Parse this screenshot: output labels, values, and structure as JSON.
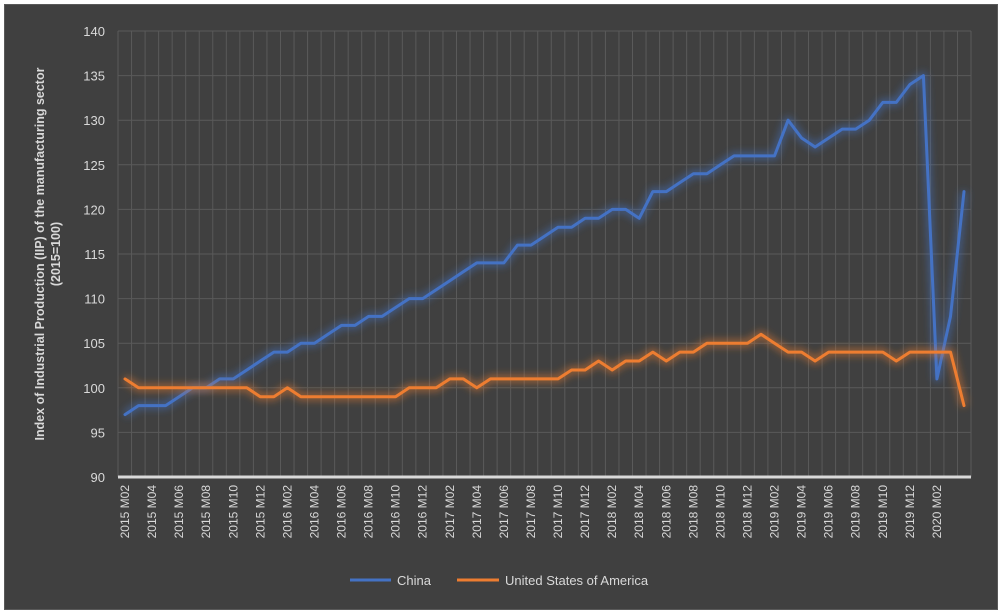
{
  "chart_data": {
    "type": "line",
    "ylabel": "Index of Industrial Production (IIP) of the manufacturing sector",
    "ylabel_line2": "(2015=100)",
    "ylim": [
      90,
      140
    ],
    "yticks": [
      90,
      95,
      100,
      105,
      110,
      115,
      120,
      125,
      130,
      135,
      140
    ],
    "grid": true,
    "legend_position": "bottom",
    "x": [
      "2015 M02",
      "2015 M03",
      "2015 M04",
      "2015 M05",
      "2015 M06",
      "2015 M07",
      "2015 M08",
      "2015 M09",
      "2015 M10",
      "2015 M11",
      "2015 M12",
      "2016 M01",
      "2016 M02",
      "2016 M03",
      "2016 M04",
      "2016 M05",
      "2016 M06",
      "2016 M07",
      "2016 M08",
      "2016 M09",
      "2016 M10",
      "2016 M11",
      "2016 M12",
      "2017 M01",
      "2017 M02",
      "2017 M03",
      "2017 M04",
      "2017 M05",
      "2017 M06",
      "2017 M07",
      "2017 M08",
      "2017 M09",
      "2017 M10",
      "2017 M11",
      "2017 M12",
      "2018 M01",
      "2018 M02",
      "2018 M03",
      "2018 M04",
      "2018 M05",
      "2018 M06",
      "2018 M07",
      "2018 M08",
      "2018 M09",
      "2018 M10",
      "2018 M11",
      "2018 M12",
      "2019 M01",
      "2019 M02",
      "2019 M03",
      "2019 M04",
      "2019 M05",
      "2019 M06",
      "2019 M07",
      "2019 M08",
      "2019 M09",
      "2019 M10",
      "2019 M11",
      "2019 M12",
      "2020 M01",
      "2020 M02",
      "2020 M03",
      "2020 M04"
    ],
    "xtick_labels": [
      "2015 M02",
      "2015 M04",
      "2015 M06",
      "2015 M08",
      "2015 M10",
      "2015 M12",
      "2016 M02",
      "2016 M04",
      "2016 M06",
      "2016 M08",
      "2016 M10",
      "2016 M12",
      "2017 M02",
      "2017 M04",
      "2017 M06",
      "2017 M08",
      "2017 M10",
      "2017 M12",
      "2018 M02",
      "2018 M04",
      "2018 M06",
      "2018 M08",
      "2018 M10",
      "2018 M12",
      "2019 M02",
      "2019 M04",
      "2019 M06",
      "2019 M08",
      "2019 M10",
      "2019 M12",
      "2020 M02"
    ],
    "series": [
      {
        "name": "China",
        "color": "#4472c4",
        "values": [
          97,
          98,
          98,
          98,
          99,
          100,
          100,
          101,
          101,
          102,
          103,
          104,
          104,
          105,
          105,
          106,
          107,
          107,
          108,
          108,
          109,
          110,
          110,
          111,
          112,
          113,
          114,
          114,
          114,
          116,
          116,
          117,
          118,
          118,
          119,
          119,
          120,
          120,
          119,
          122,
          122,
          123,
          124,
          124,
          125,
          126,
          126,
          126,
          126,
          130,
          128,
          127,
          128,
          129,
          129,
          130,
          132,
          132,
          134,
          135,
          101,
          108,
          122
        ]
      },
      {
        "name": "United States of America",
        "color": "#ed7d31",
        "values": [
          101,
          100,
          100,
          100,
          100,
          100,
          100,
          100,
          100,
          100,
          99,
          99,
          100,
          99,
          99,
          99,
          99,
          99,
          99,
          99,
          99,
          100,
          100,
          100,
          101,
          101,
          100,
          101,
          101,
          101,
          101,
          101,
          101,
          102,
          102,
          103,
          102,
          103,
          103,
          104,
          103,
          104,
          104,
          105,
          105,
          105,
          105,
          106,
          105,
          104,
          104,
          103,
          104,
          104,
          104,
          104,
          104,
          103,
          104,
          104,
          104,
          104,
          98
        ]
      }
    ]
  }
}
